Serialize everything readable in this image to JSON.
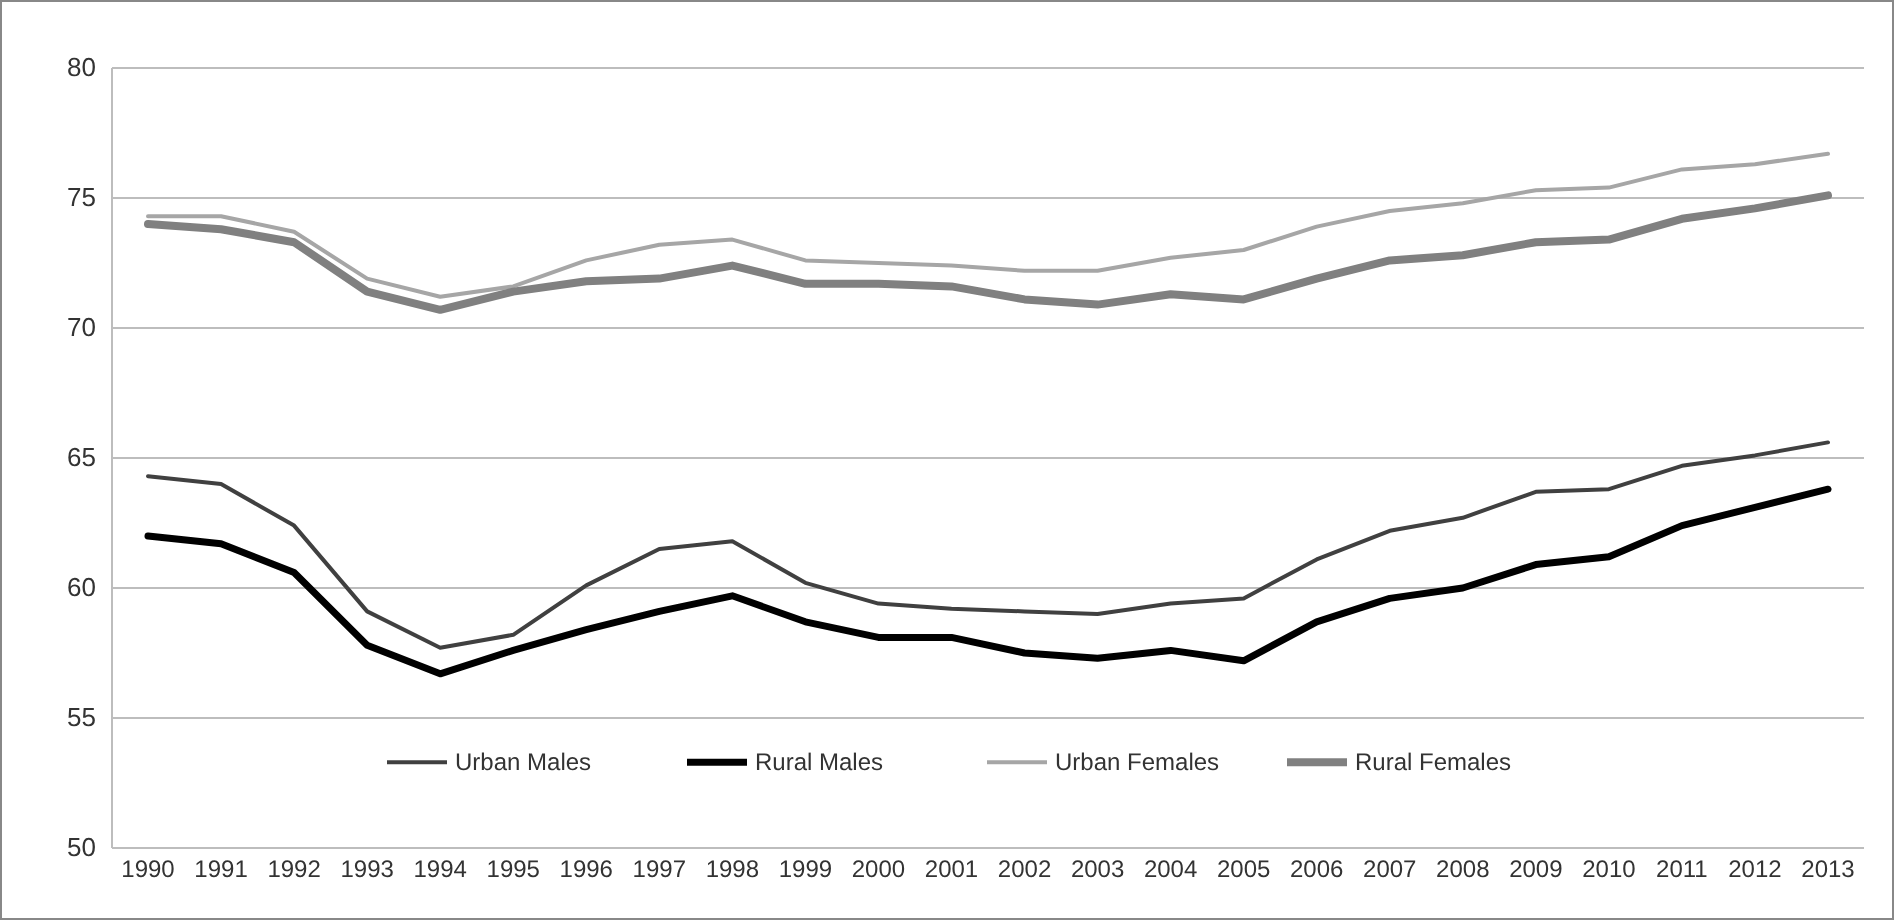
{
  "chart_data": {
    "type": "line",
    "categories": [
      "1990",
      "1991",
      "1992",
      "1993",
      "1994",
      "1995",
      "1996",
      "1997",
      "1998",
      "1999",
      "2000",
      "2001",
      "2002",
      "2003",
      "2004",
      "2005",
      "2006",
      "2007",
      "2008",
      "2009",
      "2010",
      "2011",
      "2012",
      "2013"
    ],
    "series": [
      {
        "name": "Urban Males",
        "color": "#404040",
        "values": [
          64.3,
          64.0,
          62.4,
          59.1,
          57.7,
          58.2,
          60.1,
          61.5,
          61.8,
          60.2,
          59.4,
          59.2,
          59.1,
          59.0,
          59.4,
          59.6,
          61.1,
          62.2,
          62.7,
          63.7,
          63.8,
          64.7,
          65.1,
          65.6
        ]
      },
      {
        "name": "Rural Males",
        "color": "#000000",
        "values": [
          62.0,
          61.7,
          60.6,
          57.8,
          56.7,
          57.6,
          58.4,
          59.1,
          59.7,
          58.7,
          58.1,
          58.1,
          57.5,
          57.3,
          57.6,
          57.2,
          58.7,
          59.6,
          60.0,
          60.9,
          61.2,
          62.4,
          63.1,
          63.8
        ]
      },
      {
        "name": "Urban Females",
        "color": "#a6a6a6",
        "values": [
          74.3,
          74.3,
          73.7,
          71.9,
          71.2,
          71.6,
          72.6,
          73.2,
          73.4,
          72.6,
          72.5,
          72.4,
          72.2,
          72.2,
          72.7,
          73.0,
          73.9,
          74.5,
          74.8,
          75.3,
          75.4,
          76.1,
          76.3,
          76.7
        ]
      },
      {
        "name": "Rural Females",
        "color": "#808080",
        "values": [
          74.0,
          73.8,
          73.3,
          71.4,
          70.7,
          71.4,
          71.8,
          71.9,
          72.4,
          71.7,
          71.7,
          71.6,
          71.1,
          70.9,
          71.3,
          71.1,
          71.9,
          72.6,
          72.8,
          73.3,
          73.4,
          74.2,
          74.6,
          75.1
        ]
      }
    ],
    "ylim": [
      50,
      80
    ],
    "yticks": [
      50,
      55,
      60,
      65,
      70,
      75,
      80
    ],
    "grid": "y",
    "legend": "bottom",
    "marker": "none",
    "line_style": "solid"
  }
}
